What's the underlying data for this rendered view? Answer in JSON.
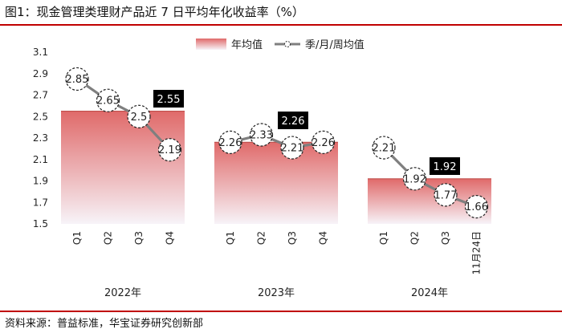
{
  "header": {
    "title": "图1：现金管理类理财产品近 7 日平均年化收益率（%）"
  },
  "footer": {
    "source": "资料来源：普益标准，华宝证券研究创新部"
  },
  "colors": {
    "bar_top": "#e06a6a",
    "bar_bottom": "#f7f3f8",
    "line": "#7f7f7f",
    "rule": "#c00000",
    "label_box": "#000000"
  },
  "chart_data": {
    "type": "bar+line",
    "title": "现金管理类理财产品近 7 日平均年化收益率（%）",
    "ylim": [
      1.5,
      3.1
    ],
    "yticks": [
      "1.5",
      "1.7",
      "1.9",
      "2.1",
      "2.3",
      "2.5",
      "2.7",
      "2.9",
      "3.1"
    ],
    "legend": [
      "年均值",
      "季/月/周均值"
    ],
    "groups": [
      {
        "year": "2022年",
        "annual": 2.55,
        "annual_label": "2.55",
        "points": [
          {
            "x": "Q1",
            "value": 2.85,
            "label": "2.85"
          },
          {
            "x": "Q2",
            "value": 2.65,
            "label": "2.65"
          },
          {
            "x": "Q3",
            "value": 2.5,
            "label": "2.5"
          },
          {
            "x": "Q4",
            "value": 2.19,
            "label": "2.19"
          }
        ]
      },
      {
        "year": "2023年",
        "annual": 2.26,
        "annual_label": "2.26",
        "points": [
          {
            "x": "Q1",
            "value": 2.26,
            "label": "2.26"
          },
          {
            "x": "Q2",
            "value": 2.33,
            "label": "2.33"
          },
          {
            "x": "Q3",
            "value": 2.21,
            "label": "2.21"
          },
          {
            "x": "Q4",
            "value": 2.26,
            "label": "2.26"
          }
        ]
      },
      {
        "year": "2024年",
        "annual": 1.92,
        "annual_label": "1.92",
        "points": [
          {
            "x": "Q1",
            "value": 2.21,
            "label": "2.21"
          },
          {
            "x": "Q2",
            "value": 1.92,
            "label": "1.92"
          },
          {
            "x": "Q3",
            "value": 1.77,
            "label": "1.77"
          },
          {
            "x": "11月24日",
            "value": 1.66,
            "label": "1.66"
          }
        ]
      }
    ]
  }
}
